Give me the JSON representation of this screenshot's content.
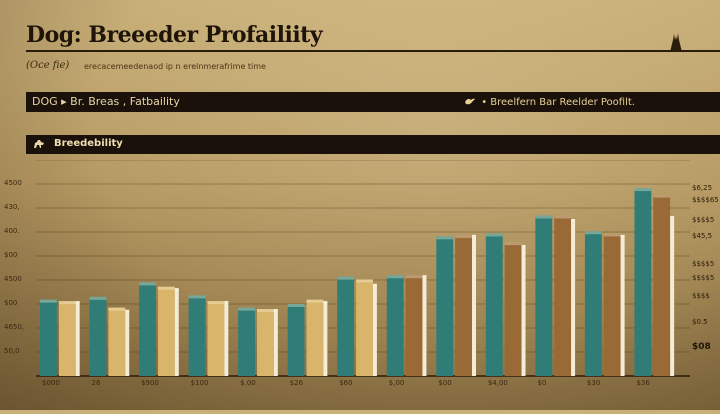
{
  "header": {
    "title": "Dog: Breeeder Profailiity",
    "subtitle_icon": "(Oce fie)",
    "subtitle": "erecacemeedenaod ip n erelnmerafrime time"
  },
  "bands": {
    "band1_left": "DOG ▸ Br. Breas , Fatbaility",
    "band1_right": "• Breelfern Bar Reelder Poofilt.",
    "band2_left": "Breedebility"
  },
  "colors": {
    "teal": "#2f7d76",
    "gold": "#d8b56a",
    "brown": "#9a6a36",
    "cream": "#f4ecd6",
    "dark": "#1a120a"
  },
  "icons": [
    "tower-icon",
    "bird-icon",
    "dog-icon"
  ],
  "chart_data": {
    "type": "bar",
    "ylim": [
      0,
      300
    ],
    "y_tick_labels": [
      "",
      "50,0",
      "4650,",
      "$00",
      "4500",
      "$00",
      "400.",
      "430,",
      "4500",
      ""
    ],
    "x_tick_labels": [
      "$000",
      "26",
      "$900",
      "$100",
      "$.00",
      "$26",
      "$60",
      "$,00",
      "$00",
      "$4,00",
      "$0",
      "$30",
      "$36"
    ],
    "right_labels": [
      "$6,25",
      "$$$$65",
      "$$$$5",
      "$45,5",
      "$$$$5",
      "$$$$5",
      "$$$$",
      "$0.5",
      "$08"
    ],
    "groups": [
      {
        "teal": 106,
        "gold": 104,
        "cream": 104
      },
      {
        "teal": 110,
        "gold": 95,
        "cream": 92
      },
      {
        "teal": 130,
        "gold": 124,
        "cream": 122
      },
      {
        "teal": 112,
        "gold": 104,
        "cream": 104
      },
      {
        "teal": 95,
        "gold": 93,
        "cream": 93
      },
      {
        "teal": 100,
        "gold": 106,
        "cream": 104
      },
      {
        "teal": 138,
        "gold": 134,
        "cream": 128
      },
      {
        "teal": 140,
        "brown": 140,
        "cream": 140
      },
      {
        "teal": 194,
        "brown": 196,
        "cream": 196
      },
      {
        "teal": 198,
        "brown": 186,
        "cream": 182
      },
      {
        "teal": 223,
        "brown": 223,
        "cream": 218
      },
      {
        "teal": 201,
        "brown": 198,
        "cream": 196
      },
      {
        "teal": 261,
        "brown": 252,
        "cream": 222
      }
    ]
  }
}
